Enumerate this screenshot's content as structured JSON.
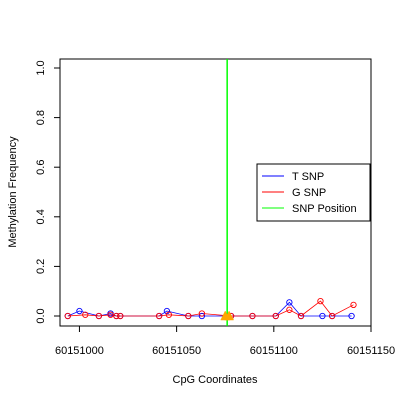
{
  "chart_data": {
    "type": "scatter",
    "xlabel": "CpG Coordinates",
    "ylabel": "Methylation Frequency",
    "xlim": [
      60150990,
      60151150
    ],
    "ylim": [
      0,
      1.0
    ],
    "xticks": [
      60151000,
      60151050,
      60151100,
      60151150
    ],
    "xtick_labels": [
      "60151000",
      "60151050",
      "60151100",
      "60151150"
    ],
    "yticks": [
      0.0,
      0.2,
      0.4,
      0.6,
      0.8,
      1.0
    ],
    "ytick_labels": [
      "0.0",
      "0.2",
      "0.4",
      "0.6",
      "0.8",
      "1.0"
    ],
    "legend_position": "right",
    "series": [
      {
        "name": "T SNP",
        "color": "#0000ff",
        "points": [
          {
            "x": 60150994,
            "y": 0.0
          },
          {
            "x": 60151000,
            "y": 0.02
          },
          {
            "x": 60151010,
            "y": 0.0
          },
          {
            "x": 60151016,
            "y": 0.01
          },
          {
            "x": 60151019,
            "y": 0.0
          },
          {
            "x": 60151021,
            "y": 0.0
          },
          {
            "x": 60151041,
            "y": 0.0
          },
          {
            "x": 60151045,
            "y": 0.02
          },
          {
            "x": 60151056,
            "y": 0.0
          },
          {
            "x": 60151063,
            "y": 0.0
          },
          {
            "x": 60151078,
            "y": 0.0
          },
          {
            "x": 60151089,
            "y": 0.0
          },
          {
            "x": 60151101,
            "y": 0.0
          },
          {
            "x": 60151108,
            "y": 0.055
          },
          {
            "x": 60151114,
            "y": 0.0
          },
          {
            "x": 60151125,
            "y": 0.0
          },
          {
            "x": 60151130,
            "y": 0.0
          },
          {
            "x": 60151140,
            "y": 0.0
          }
        ]
      },
      {
        "name": "G SNP",
        "color": "#ff0000",
        "points": [
          {
            "x": 60150994,
            "y": 0.0
          },
          {
            "x": 60151003,
            "y": 0.005
          },
          {
            "x": 60151010,
            "y": 0.0
          },
          {
            "x": 60151016,
            "y": 0.005
          },
          {
            "x": 60151019,
            "y": 0.0
          },
          {
            "x": 60151021,
            "y": 0.0
          },
          {
            "x": 60151041,
            "y": 0.0
          },
          {
            "x": 60151046,
            "y": 0.005
          },
          {
            "x": 60151056,
            "y": 0.0
          },
          {
            "x": 60151063,
            "y": 0.01
          },
          {
            "x": 60151078,
            "y": 0.0
          },
          {
            "x": 60151089,
            "y": 0.0
          },
          {
            "x": 60151101,
            "y": 0.0
          },
          {
            "x": 60151108,
            "y": 0.025
          },
          {
            "x": 60151114,
            "y": 0.0
          },
          {
            "x": 60151124,
            "y": 0.06
          },
          {
            "x": 60151130,
            "y": 0.0
          },
          {
            "x": 60151141,
            "y": 0.045
          }
        ]
      }
    ],
    "snp_position": {
      "name": "SNP Position",
      "x": 60151076,
      "color": "#00ff00"
    },
    "snp_markers": {
      "color": "#ffa500",
      "points": [
        {
          "x": 60151075,
          "y": 0.0
        },
        {
          "x": 60151077,
          "y": 0.0
        }
      ]
    }
  }
}
